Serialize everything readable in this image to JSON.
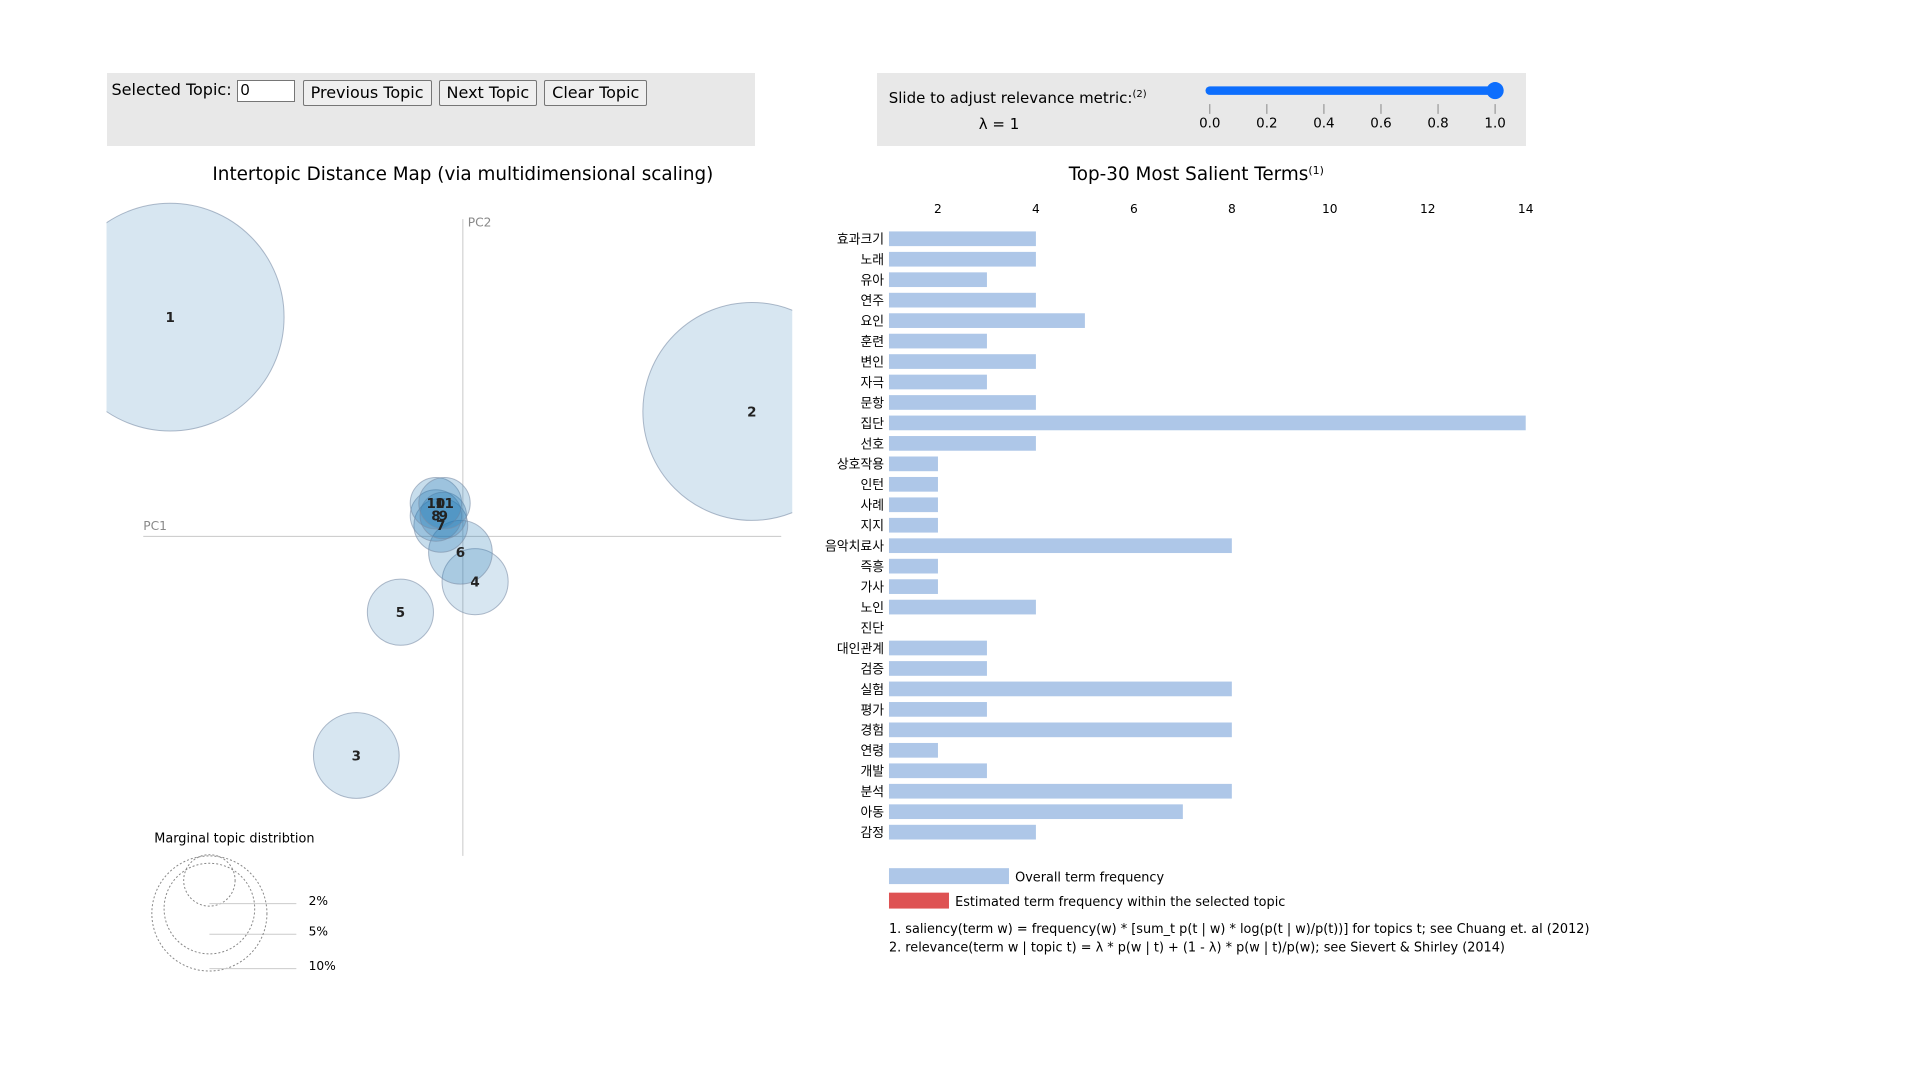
{
  "controls": {
    "selected_topic_label": "Selected Topic:",
    "selected_topic_value": "0",
    "previous_label": "Previous Topic",
    "next_label": "Next Topic",
    "clear_label": "Clear Topic"
  },
  "relevance": {
    "label": "Slide to adjust relevance metric:",
    "label_note": "(2)",
    "lambda_text": "λ = 1",
    "lambda_value": 1.0,
    "ticks": [
      "0.0",
      "0.2",
      "0.4",
      "0.6",
      "0.8",
      "1.0"
    ]
  },
  "left_chart": {
    "title": "Intertopic Distance Map (via multidimensional scaling)",
    "axis_x_label": "PC1",
    "axis_y_label": "PC2",
    "topics": [
      "1",
      "2",
      "3",
      "4",
      "5",
      "6",
      "7",
      "8",
      "9",
      "10",
      "11"
    ],
    "legend_title": "Marginal topic distribtion",
    "legend_labels": [
      "2%",
      "5%",
      "10%"
    ]
  },
  "chart_data": {
    "type": "bar",
    "title": "Top-30 Most Salient Terms",
    "title_note": "(1)",
    "orientation": "horizontal",
    "x_ticks": [
      "2",
      "4",
      "6",
      "8",
      "10",
      "12",
      "14"
    ],
    "xlim": [
      1,
      14
    ],
    "categories": [
      "효과크기",
      "노래",
      "유아",
      "연주",
      "요인",
      "훈련",
      "변인",
      "자극",
      "문항",
      "집단",
      "선호",
      "상호작용",
      "인턴",
      "사례",
      "지지",
      "음악치료사",
      "즉흥",
      "가사",
      "노인",
      "진단",
      "대인관계",
      "검증",
      "실험",
      "평가",
      "경험",
      "연령",
      "개발",
      "분석",
      "아동",
      "감정"
    ],
    "series": [
      {
        "values": [
          4,
          4,
          3,
          4,
          5,
          3,
          4,
          3,
          4,
          14,
          4,
          2,
          2,
          2,
          2,
          8,
          2,
          2,
          4,
          1,
          3,
          3,
          8,
          3,
          8,
          2,
          3,
          8,
          7,
          4
        ]
      }
    ],
    "legend": [
      "Overall term frequency",
      "Estimated term frequency within the selected topic"
    ],
    "colors": {
      "overall": "#aec7e8",
      "selected": "#d62728"
    }
  },
  "footnotes": [
    "1. saliency(term w) = frequency(w) * [sum_t p(t | w) * log(p(t | w)/p(t))] for topics t; see Chuang et. al (2012)",
    "2. relevance(term w | topic t) = λ * p(w | t) + (1 - λ) * p(w | t)/p(w); see Sievert & Shirley (2014)"
  ],
  "colors": {
    "panel_bg": "#e8e8e8",
    "circle_fill": "#1f77b4",
    "slider_accent": "#0d6efd"
  }
}
